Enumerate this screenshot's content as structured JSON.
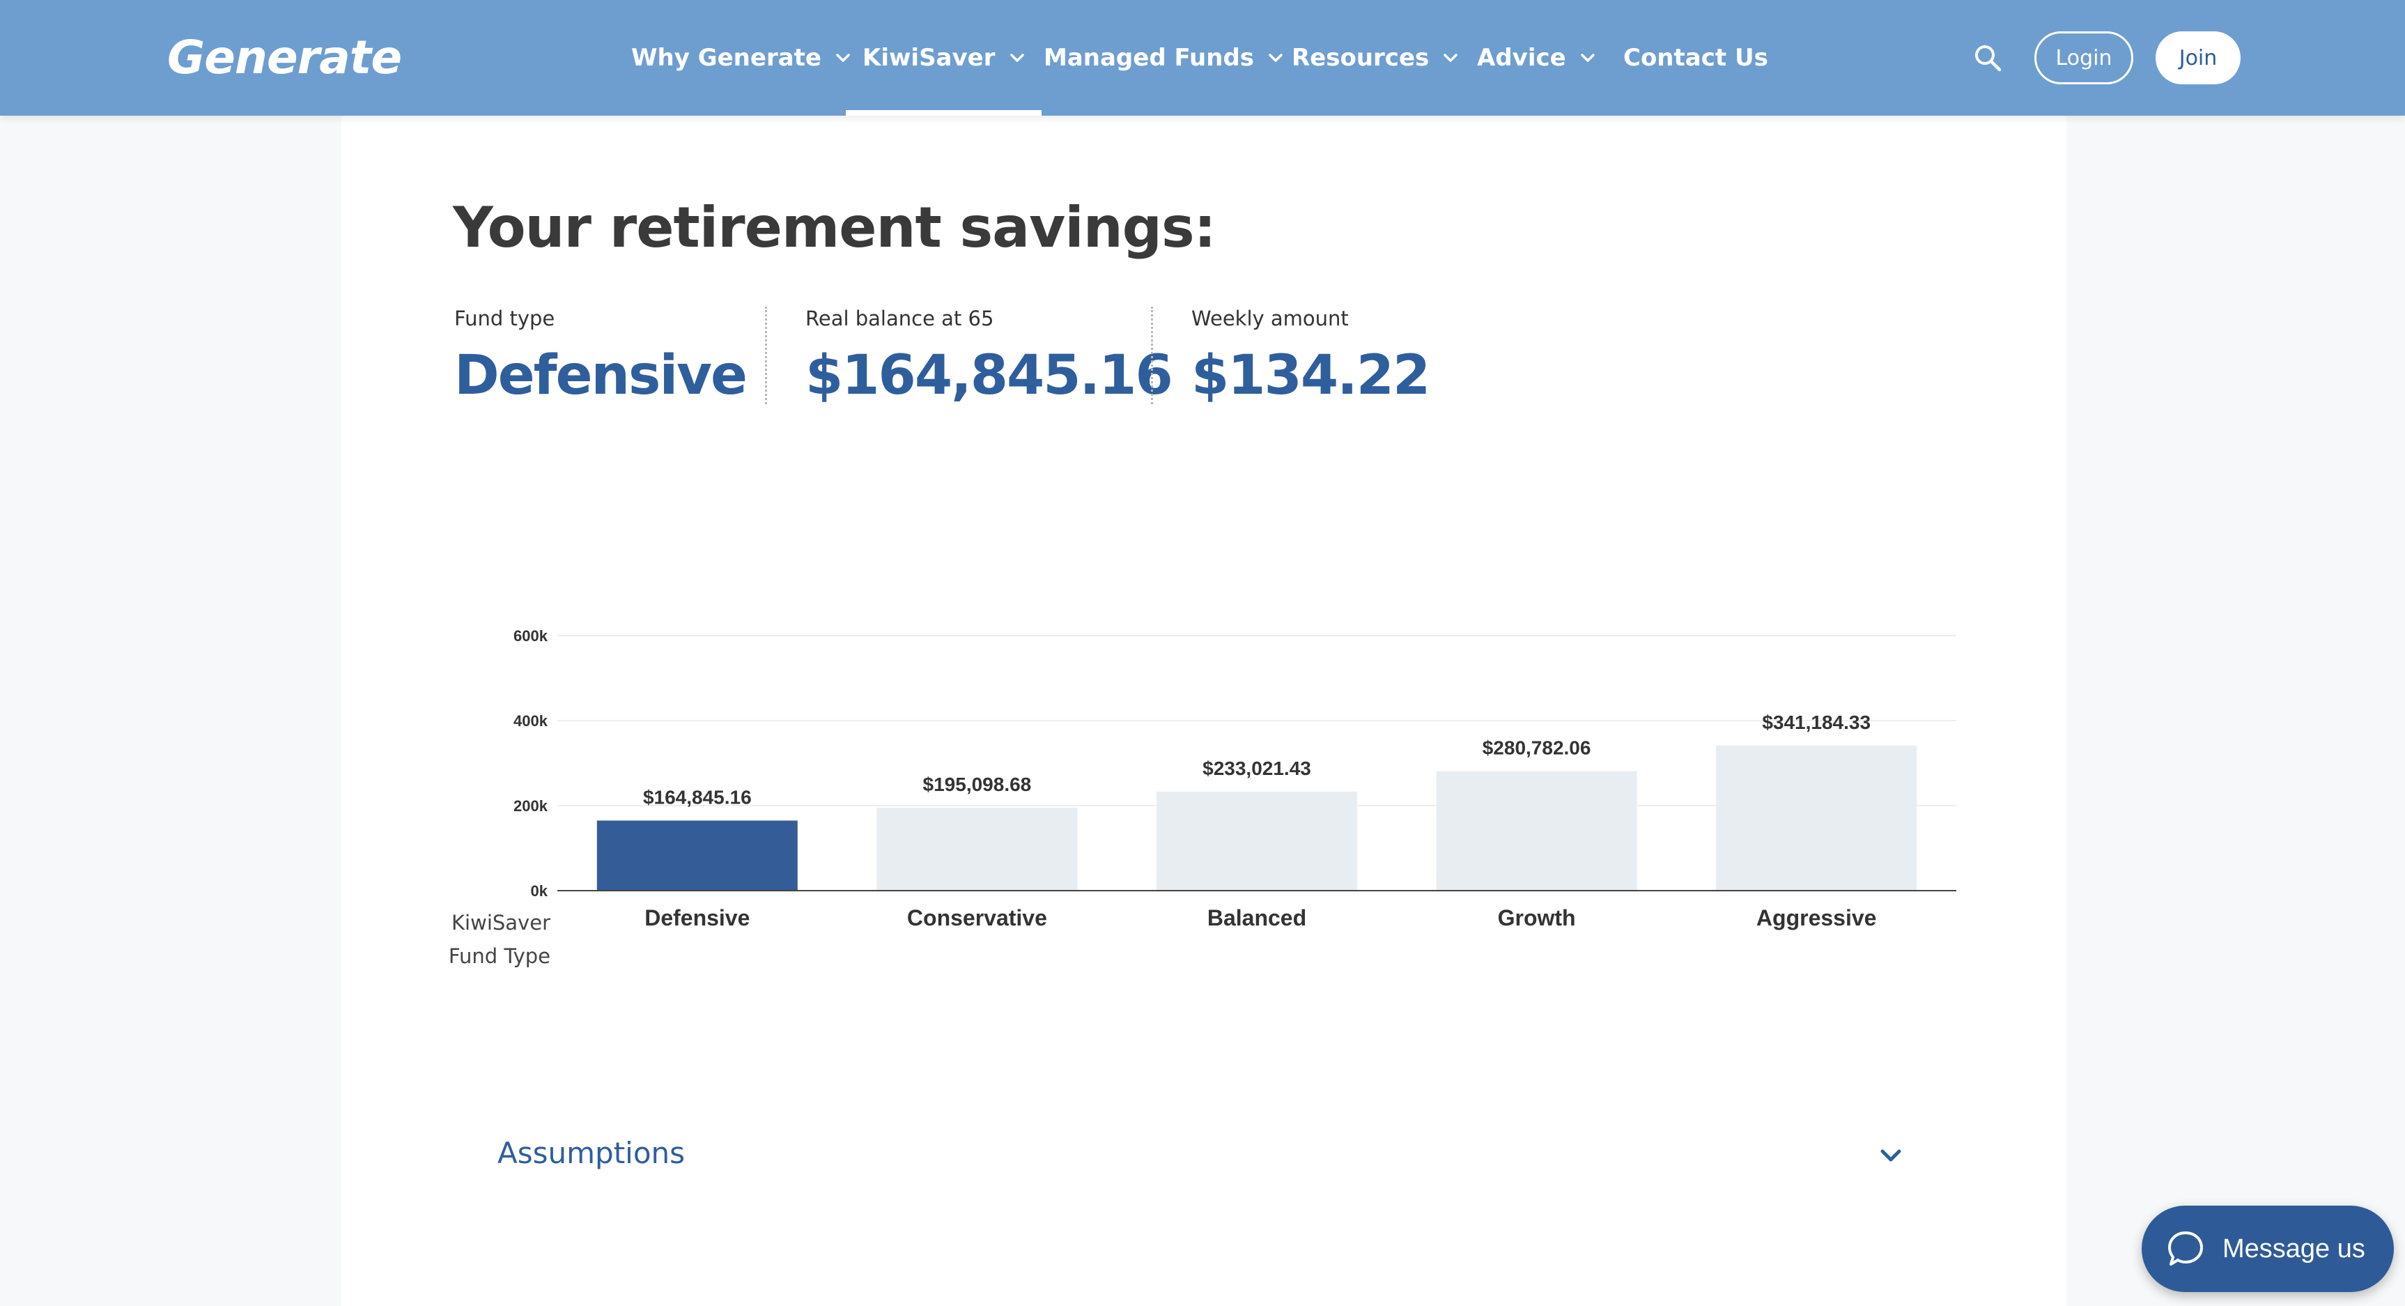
{
  "header": {
    "logo": "Generate",
    "nav": [
      {
        "label": "Why Generate",
        "dropdown": true,
        "active": false
      },
      {
        "label": "KiwiSaver",
        "dropdown": true,
        "active": true
      },
      {
        "label": "Managed Funds",
        "dropdown": true,
        "active": false
      },
      {
        "label": "Resources",
        "dropdown": true,
        "active": false
      },
      {
        "label": "Advice",
        "dropdown": true,
        "active": false
      },
      {
        "label": "Contact Us",
        "dropdown": false,
        "active": false
      }
    ],
    "login_label": "Login",
    "join_label": "Join",
    "search_icon": "search-icon"
  },
  "main": {
    "title": "Your retirement savings:",
    "stats": [
      {
        "label": "Fund type",
        "value": "Defensive"
      },
      {
        "label": "Real balance at 65",
        "value": "$164,845.16"
      },
      {
        "label": "Weekly amount",
        "value": "$134.22"
      }
    ],
    "axis_caption_line1": "KiwiSaver",
    "axis_caption_line2": "Fund Type",
    "assumptions_label": "Assumptions"
  },
  "chart_data": {
    "type": "bar",
    "categories": [
      "Defensive",
      "Conservative",
      "Balanced",
      "Growth",
      "Aggressive"
    ],
    "values": [
      164845.16,
      195098.68,
      233021.43,
      280782.06,
      341184.33
    ],
    "value_labels": [
      "$164,845.16",
      "$195,098.68",
      "$233,021.43",
      "$280,782.06",
      "$341,184.33"
    ],
    "yticks": [
      0,
      200000,
      400000,
      600000
    ],
    "ytick_labels": [
      "0k",
      "200k",
      "400k",
      "600k"
    ],
    "ylim": [
      0,
      600000
    ],
    "xlabel": "KiwiSaver Fund Type",
    "highlight_index": 0,
    "highlight_color": "#345d97",
    "bar_color": "#e8edf2",
    "grid": true
  },
  "chat": {
    "label": "Message us",
    "icon": "chat-bubble-icon"
  },
  "colors": {
    "header_bg": "#6e9ecf",
    "accent": "#2f5e9c"
  }
}
